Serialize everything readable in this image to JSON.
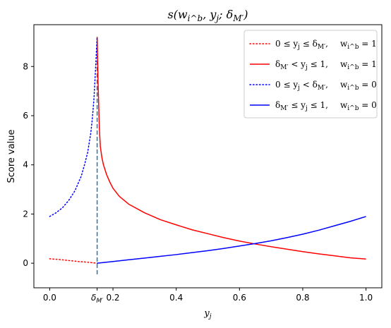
{
  "chart_data": {
    "type": "line",
    "title": "s(w_i^b, y_j; δ_M′)",
    "xlabel": "y_j",
    "ylabel": "Score value",
    "xlim": [
      -0.05,
      1.05
    ],
    "ylim": [
      -1.0,
      9.7
    ],
    "xticks": [
      {
        "value": 0.0,
        "label": "0.0"
      },
      {
        "value": 0.15,
        "label": "δ_M′"
      },
      {
        "value": 0.2,
        "label": "0.2"
      },
      {
        "value": 0.4,
        "label": "0.4"
      },
      {
        "value": 0.6,
        "label": "0.6"
      },
      {
        "value": 0.8,
        "label": "0.8"
      },
      {
        "value": 1.0,
        "label": "1.0"
      }
    ],
    "yticks": [
      {
        "value": 0,
        "label": "0"
      },
      {
        "value": 2,
        "label": "2"
      },
      {
        "value": 4,
        "label": "4"
      },
      {
        "value": 6,
        "label": "6"
      },
      {
        "value": 8,
        "label": "8"
      }
    ],
    "grid": false,
    "legend_position": "top-right",
    "vline": {
      "x": 0.15,
      "ymin": -0.45,
      "ymax": 9.2,
      "color": "#1f77b4",
      "style": "dashed"
    },
    "series": [
      {
        "name": "0 ≤ y_j ≤ δ_M′,   w_i^b = 1",
        "color": "#ff0000",
        "style": "dotted",
        "x": [
          0.0,
          0.03,
          0.06,
          0.09,
          0.12,
          0.15
        ],
        "y": [
          0.18,
          0.15,
          0.11,
          0.07,
          0.04,
          0.0
        ]
      },
      {
        "name": "δ_M′ < y_j ≤ 1,   w_i^b = 1",
        "color": "#ff0000",
        "style": "solid",
        "x": [
          0.15,
          0.153,
          0.157,
          0.16,
          0.165,
          0.17,
          0.18,
          0.19,
          0.2,
          0.22,
          0.25,
          0.3,
          0.35,
          0.4,
          0.45,
          0.5,
          0.55,
          0.6,
          0.65,
          0.7,
          0.75,
          0.8,
          0.85,
          0.9,
          0.95,
          1.0
        ],
        "y": [
          9.2,
          7.3,
          5.5,
          4.75,
          4.3,
          4.0,
          3.6,
          3.3,
          3.05,
          2.72,
          2.4,
          2.05,
          1.77,
          1.56,
          1.36,
          1.2,
          1.04,
          0.9,
          0.78,
          0.67,
          0.57,
          0.47,
          0.38,
          0.3,
          0.22,
          0.17
        ]
      },
      {
        "name": "0 ≤ y_j < δ_M′,   w_i^b = 0",
        "color": "#0000ff",
        "style": "dotted",
        "x": [
          0.0,
          0.02,
          0.04,
          0.06,
          0.08,
          0.1,
          0.11,
          0.12,
          0.13,
          0.135,
          0.14,
          0.145,
          0.148,
          0.15
        ],
        "y": [
          1.9,
          2.05,
          2.25,
          2.55,
          2.95,
          3.55,
          4.0,
          4.5,
          5.3,
          5.9,
          6.7,
          7.9,
          8.7,
          9.2
        ]
      },
      {
        "name": "δ_M′ ≤ y_j ≤ 1,   w_i^b = 0",
        "color": "#0000ff",
        "style": "solid",
        "x": [
          0.15,
          0.2,
          0.25,
          0.3,
          0.35,
          0.4,
          0.45,
          0.5,
          0.55,
          0.6,
          0.65,
          0.7,
          0.75,
          0.8,
          0.85,
          0.9,
          0.95,
          1.0
        ],
        "y": [
          0.0,
          0.07,
          0.14,
          0.21,
          0.28,
          0.35,
          0.43,
          0.51,
          0.6,
          0.7,
          0.8,
          0.91,
          1.04,
          1.18,
          1.34,
          1.52,
          1.7,
          1.9
        ]
      }
    ]
  }
}
